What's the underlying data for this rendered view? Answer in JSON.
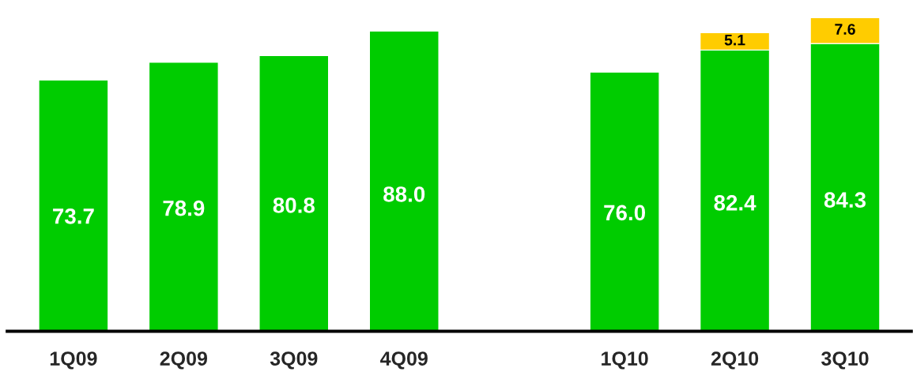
{
  "chart_data": {
    "type": "bar",
    "stacked": true,
    "tick_labels": "x",
    "categories": [
      "1Q09",
      "2Q09",
      "3Q09",
      "4Q09",
      null,
      "1Q10",
      "2Q10",
      "3Q10"
    ],
    "series": [
      {
        "color": "#00cc00",
        "values": [
          73.7,
          78.9,
          80.8,
          88.0,
          null,
          76.0,
          82.4,
          84.3
        ],
        "value_labels": [
          "73.7",
          "78.9",
          "80.8",
          "88.0",
          null,
          "76.0",
          "82.4",
          "84.3"
        ]
      },
      {
        "color": "#ffcc00",
        "values": [
          null,
          null,
          null,
          null,
          null,
          null,
          5.1,
          7.6
        ],
        "value_labels": [
          null,
          null,
          null,
          null,
          null,
          null,
          "5.1",
          "7.6"
        ]
      }
    ]
  }
}
